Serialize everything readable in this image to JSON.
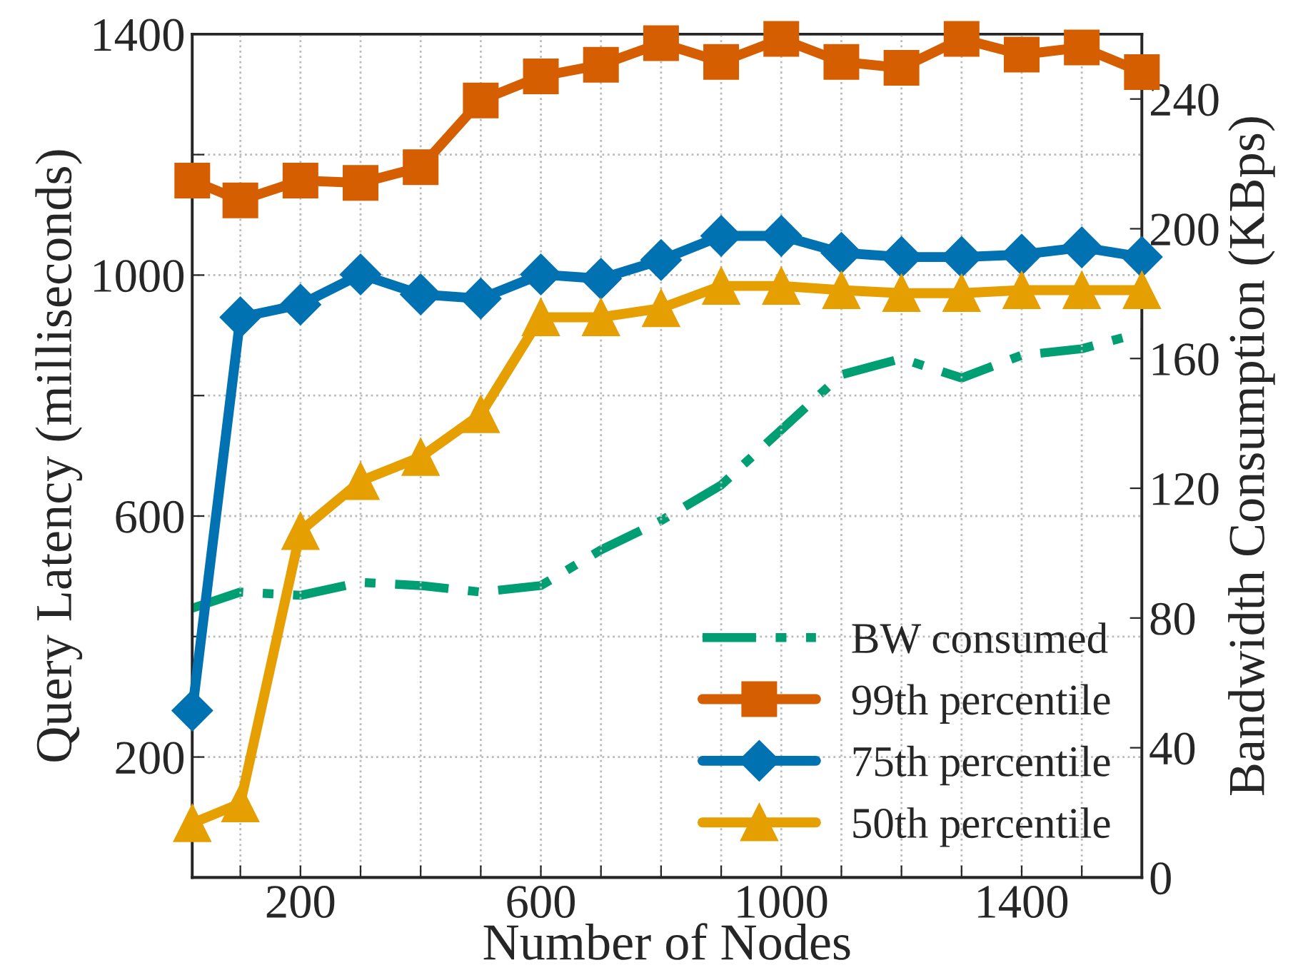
{
  "chart_data": {
    "type": "line",
    "xlabel": "Number of Nodes",
    "ylabel": "Query Latency (milliseconds)",
    "y2label": "Bandwidth Consumption (KBps)",
    "x": [
      20,
      100,
      200,
      300,
      400,
      500,
      600,
      700,
      800,
      900,
      1000,
      1100,
      1200,
      1300,
      1400,
      1500,
      1600
    ],
    "series": [
      {
        "name": "BW consumed",
        "color": "#009e73",
        "axis": "y2",
        "marker": "none",
        "line_style": "dashdot",
        "values": [
          83,
          88,
          87,
          91,
          90,
          88,
          90,
          101,
          110,
          121,
          138,
          155,
          160,
          154,
          161,
          163,
          168
        ]
      },
      {
        "name": "99th percentile",
        "color": "#d55e00",
        "marker": "square",
        "values": [
          1157,
          1124,
          1157,
          1153,
          1179,
          1290,
          1330,
          1349,
          1385,
          1354,
          1392,
          1354,
          1344,
          1392,
          1366,
          1378,
          1337
        ]
      },
      {
        "name": "75th percentile",
        "color": "#0072b2",
        "marker": "diamond",
        "values": [
          277,
          930,
          951,
          1001,
          968,
          961,
          1001,
          994,
          1025,
          1065,
          1065,
          1037,
          1030,
          1030,
          1034,
          1046,
          1030
        ]
      },
      {
        "name": "50th percentile",
        "color": "#e69f00",
        "marker": "triangle",
        "values": [
          90,
          123,
          575,
          658,
          698,
          769,
          930,
          930,
          945,
          982,
          982,
          975,
          970,
          970,
          975,
          975,
          975
        ]
      }
    ],
    "xlim": [
      20,
      1600
    ],
    "xticks": [
      {
        "value": 100,
        "label": null
      },
      200,
      {
        "value": 300,
        "label": null
      },
      {
        "value": 400,
        "label": null
      },
      {
        "value": 500,
        "label": null
      },
      600,
      {
        "value": 700,
        "label": null
      },
      {
        "value": 800,
        "label": null
      },
      {
        "value": 900,
        "label": null
      },
      1000,
      {
        "value": 1100,
        "label": null
      },
      {
        "value": 1200,
        "label": null
      },
      {
        "value": 1300,
        "label": null
      },
      1400,
      {
        "value": 1500,
        "label": null
      }
    ],
    "ylim": [
      0,
      1400
    ],
    "yticks": [
      200,
      {
        "value": 400,
        "label": null
      },
      600,
      {
        "value": 800,
        "label": null
      },
      1000,
      {
        "value": 1200,
        "label": null
      },
      1400
    ],
    "y2lim": [
      0,
      260
    ],
    "y2ticks": [
      0,
      40,
      80,
      120,
      160,
      200,
      240
    ],
    "grid": true,
    "legend": "bottom right"
  }
}
